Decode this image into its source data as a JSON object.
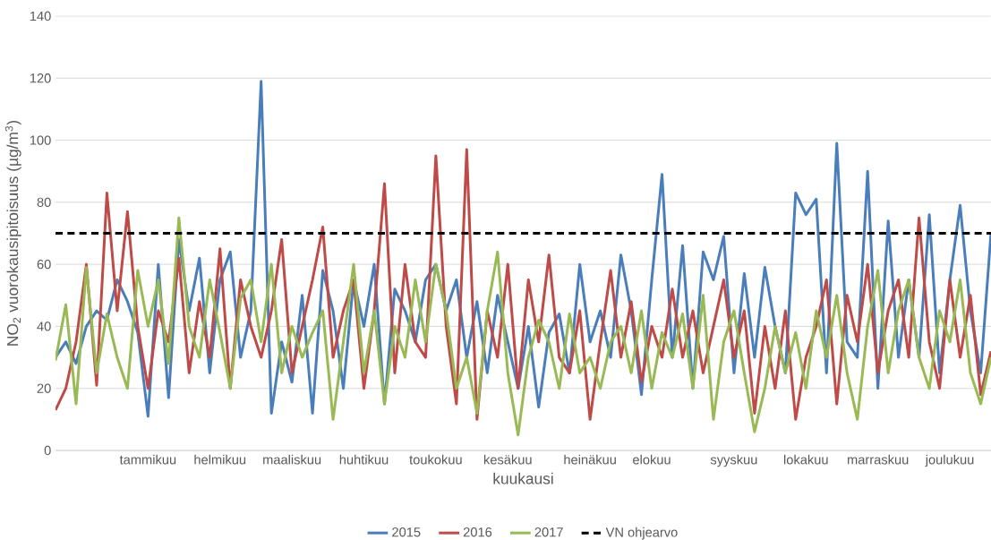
{
  "chart_data": {
    "type": "line",
    "xlabel": "kuukausi",
    "ylabel": "NO$_{2}$ vuorokausipitoisuus (µg/m$^{3}$)",
    "categories": [
      null,
      null,
      null,
      null,
      null,
      null,
      null,
      null,
      null,
      "tammikuu",
      null,
      null,
      null,
      null,
      null,
      null,
      "helmikuu",
      null,
      null,
      null,
      null,
      null,
      null,
      "maaliskuu",
      null,
      null,
      null,
      null,
      null,
      null,
      "huhtikuu",
      null,
      null,
      null,
      null,
      null,
      null,
      "toukokuu",
      null,
      null,
      null,
      null,
      null,
      null,
      "kesäkuu",
      null,
      null,
      null,
      null,
      null,
      null,
      null,
      "heinäkuu",
      null,
      null,
      null,
      null,
      null,
      "elokuu",
      null,
      null,
      null,
      null,
      null,
      null,
      null,
      "syyskuu",
      null,
      null,
      null,
      null,
      null,
      null,
      "lokakuu",
      null,
      null,
      null,
      null,
      null,
      null,
      "marraskuu",
      null,
      null,
      null,
      null,
      null,
      null,
      "joulukuu",
      null,
      null,
      null,
      null
    ],
    "series": [
      {
        "name": "2015",
        "color": "#4a7ebb",
        "values": [
          30,
          35,
          28,
          40,
          45,
          42,
          55,
          48,
          38,
          11,
          60,
          17,
          68,
          45,
          62,
          25,
          55,
          64,
          30,
          45,
          119,
          12,
          35,
          22,
          50,
          12,
          58,
          45,
          20,
          55,
          40,
          60,
          15,
          52,
          45,
          35,
          55,
          60,
          45,
          55,
          30,
          48,
          25,
          50,
          35,
          20,
          40,
          14,
          38,
          44,
          25,
          60,
          35,
          45,
          30,
          63,
          45,
          18,
          55,
          89,
          30,
          66,
          20,
          64,
          55,
          69,
          25,
          57,
          30,
          59,
          40,
          25,
          83,
          76,
          81,
          25,
          99,
          35,
          30,
          90,
          20,
          74,
          30,
          55,
          30,
          76,
          25,
          55,
          79,
          45,
          25,
          70
        ]
      },
      {
        "name": "2016",
        "color": "#be4b48",
        "values": [
          13,
          20,
          35,
          60,
          21,
          83,
          45,
          77,
          40,
          20,
          45,
          35,
          62,
          25,
          48,
          30,
          65,
          20,
          55,
          40,
          30,
          45,
          68,
          25,
          40,
          55,
          72,
          30,
          45,
          55,
          20,
          45,
          86,
          25,
          60,
          35,
          30,
          95,
          40,
          15,
          97,
          10,
          45,
          30,
          60,
          20,
          55,
          35,
          63,
          30,
          25,
          45,
          10,
          35,
          58,
          30,
          48,
          22,
          40,
          30,
          52,
          30,
          45,
          25,
          40,
          55,
          30,
          45,
          12,
          40,
          20,
          45,
          10,
          30,
          40,
          55,
          15,
          50,
          35,
          60,
          25,
          45,
          55,
          30,
          75,
          35,
          20,
          55,
          30,
          50,
          18,
          32
        ]
      },
      {
        "name": "2017",
        "color": "#98b954",
        "values": [
          29,
          47,
          15,
          59,
          25,
          44,
          30,
          20,
          58,
          40,
          55,
          28,
          75,
          40,
          30,
          55,
          38,
          20,
          49,
          55,
          35,
          60,
          25,
          40,
          30,
          38,
          45,
          10,
          35,
          60,
          25,
          45,
          15,
          40,
          30,
          55,
          35,
          60,
          45,
          20,
          30,
          12,
          45,
          64,
          25,
          5,
          30,
          42,
          35,
          20,
          44,
          25,
          30,
          20,
          35,
          40,
          25,
          45,
          20,
          38,
          30,
          44,
          20,
          50,
          10,
          35,
          45,
          25,
          6,
          20,
          40,
          25,
          38,
          20,
          45,
          30,
          50,
          25,
          10,
          40,
          58,
          25,
          45,
          55,
          30,
          20,
          45,
          35,
          55,
          25,
          15,
          30
        ]
      }
    ],
    "ref_lines": [
      {
        "axis": "y",
        "value": 70,
        "label": "VN ohjearvo",
        "color": "#000000",
        "line_style": "dashed"
      }
    ],
    "ylim": [
      0,
      140
    ],
    "yticks": [
      0,
      20,
      40,
      60,
      80,
      100,
      120,
      140
    ],
    "grid": "y",
    "legend": "bottom",
    "marker": "none",
    "line_style": "solid"
  }
}
